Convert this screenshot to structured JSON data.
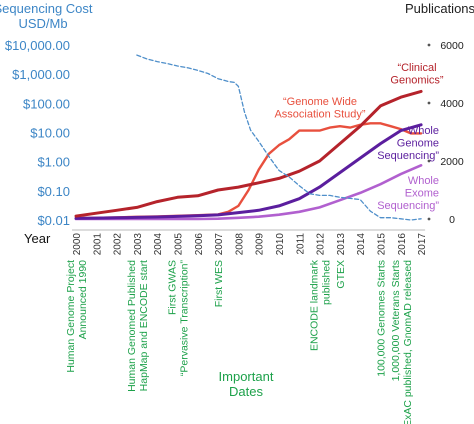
{
  "chart_data": {
    "type": "line",
    "left_axis": {
      "title_lines": [
        "Sequencing Cost",
        "USD/Mb"
      ],
      "tick_labels": [
        "$10,000.00",
        "$1,000.00",
        "$100.00",
        "$10.00",
        "$1.00",
        "$0.10",
        "$0.01"
      ],
      "tick_values": [
        10000,
        1000,
        100,
        10,
        1,
        0.1,
        0.01
      ],
      "scale": "log",
      "range": [
        0.01,
        10000
      ],
      "color": "#3d86c6"
    },
    "right_axis": {
      "title": "Publications",
      "tick_labels": [
        "6000",
        "4000",
        "2000",
        "0"
      ],
      "tick_values": [
        6000,
        4000,
        2000,
        0
      ],
      "range": [
        0,
        6000
      ],
      "color": "#222222"
    },
    "x_axis": {
      "title": "Year",
      "categories": [
        "2000",
        "2001",
        "2002",
        "2003",
        "2004",
        "2005",
        "2006",
        "2007",
        "2008",
        "2009",
        "2010",
        "2011",
        "2012",
        "2013",
        "2014",
        "2015",
        "2016",
        "2017"
      ]
    },
    "series": [
      {
        "axis": "left",
        "style": "dashed",
        "color": "#4f8fca",
        "x": [
          2003,
          2003.5,
          2004,
          2004.5,
          2005,
          2005.5,
          2006,
          2006.5,
          2007,
          2007.5,
          2007.8,
          2008,
          2008.3,
          2008.6,
          2009,
          2009.5,
          2010,
          2010.5,
          2011,
          2011.5,
          2012,
          2012.5,
          2013,
          2013.5,
          2014,
          2014.5,
          2015,
          2015.5,
          2016,
          2016.5,
          2017
        ],
        "values": [
          4500,
          3300,
          2700,
          2300,
          1900,
          1650,
          1350,
          1050,
          700,
          560,
          520,
          380,
          50,
          12,
          5,
          1.5,
          0.5,
          0.3,
          0.15,
          0.08,
          0.07,
          0.07,
          0.06,
          0.055,
          0.05,
          0.02,
          0.012,
          0.012,
          0.011,
          0.01,
          0.011
        ]
      },
      {
        "label_lines": [
          "“Genome Wide",
          "Association Study”"
        ],
        "axis": "right",
        "color": "#e8503e",
        "x": [
          2000,
          2001,
          2002,
          2003,
          2004,
          2005,
          2006,
          2007,
          2007.5,
          2008,
          2008.5,
          2009,
          2009.5,
          2010,
          2010.5,
          2011,
          2011.5,
          2012,
          2012.5,
          2013,
          2013.5,
          2014,
          2014.5,
          2015,
          2015.5,
          2016,
          2016.5,
          2017
        ],
        "values": [
          30,
          40,
          55,
          75,
          90,
          110,
          130,
          160,
          250,
          450,
          1000,
          1700,
          2250,
          2550,
          2750,
          3050,
          3050,
          3050,
          3150,
          3200,
          3150,
          3250,
          3300,
          3300,
          3200,
          3100,
          2950,
          2950
        ]
      },
      {
        "label_lines": [
          "“Clinical",
          "Genomics”"
        ],
        "axis": "right",
        "color": "#b5232b",
        "x": [
          2000,
          2001,
          2002,
          2003,
          2004,
          2005,
          2006,
          2007,
          2008,
          2009,
          2010,
          2011,
          2012,
          2013,
          2014,
          2015,
          2016,
          2017
        ],
        "values": [
          100,
          200,
          300,
          400,
          600,
          750,
          800,
          1000,
          1100,
          1250,
          1400,
          1650,
          2000,
          2600,
          3200,
          3900,
          4200,
          4400
        ]
      },
      {
        "label_lines": [
          "Whole",
          "Genome",
          "Sequencing”"
        ],
        "axis": "right",
        "color": "#5b1e9e",
        "x": [
          2000,
          2001,
          2002,
          2003,
          2004,
          2005,
          2006,
          2007,
          2008,
          2009,
          2010,
          2011,
          2012,
          2013,
          2014,
          2015,
          2016,
          2017
        ],
        "values": [
          20,
          30,
          40,
          55,
          70,
          90,
          110,
          140,
          220,
          300,
          450,
          700,
          1100,
          1600,
          2100,
          2600,
          3050,
          3250
        ]
      },
      {
        "label_lines": [
          "Whole",
          "Exome",
          "Sequencing”"
        ],
        "axis": "right",
        "color": "#b160cf",
        "x": [
          2000,
          2001,
          2002,
          2003,
          2004,
          2005,
          2006,
          2007,
          2008,
          2009,
          2010,
          2011,
          2012,
          2013,
          2014,
          2015,
          2016,
          2017
        ],
        "values": [
          0,
          0,
          0,
          0,
          0,
          0,
          0,
          10,
          40,
          80,
          150,
          250,
          400,
          650,
          900,
          1200,
          1550,
          1850
        ]
      }
    ],
    "important_dates": {
      "title_lines": [
        "Important",
        "Dates"
      ],
      "color": "#1da14a",
      "events": [
        {
          "year": 2000,
          "lines": [
            "Human Genome Project",
            "Announced 1990"
          ]
        },
        {
          "year": 2003,
          "lines": [
            "Human Genomed Published",
            "HapMap and ENCODE start"
          ]
        },
        {
          "year": 2005,
          "lines": [
            "First GWAS",
            "“Pervasive Transcription”"
          ]
        },
        {
          "year": 2007,
          "lines": [
            "First WES"
          ]
        },
        {
          "year": 2012,
          "lines": [
            "ENCODE landmark",
            "published"
          ]
        },
        {
          "year": 2013,
          "lines": [
            "GTEX"
          ]
        },
        {
          "year": 2015,
          "lines": [
            "100,000 Genomes Starts"
          ]
        },
        {
          "year": 2016,
          "lines": [
            "1,000,000 Veterans Starts",
            "ExAC published, GnomAD released"
          ]
        }
      ]
    }
  }
}
